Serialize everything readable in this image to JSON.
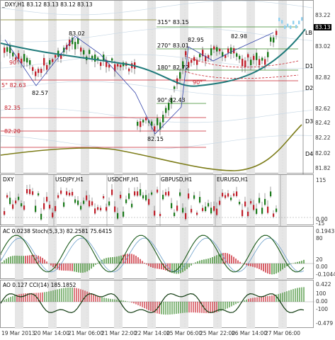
{
  "colors": {
    "grid": "#d8d8d8",
    "bull": "#1a7a1a",
    "bear": "#c0202b",
    "teal": "#1e7a7a",
    "olive": "#7d7d1a",
    "green": "#3a8a2a",
    "red": "#c8202b",
    "band": "#e6e6e6"
  },
  "main": {
    "title": "_DXY,H1  83.12 83.13 83.12 83.13",
    "price_axis": [
      "83.22",
      "83.02",
      "82.82",
      "82.62",
      "82.42",
      "82.22",
      "82.02",
      "81.82"
    ],
    "current_price": "83.13",
    "levels": [
      "315° 83.15",
      "270° 83.01",
      "180° 82.72",
      "90° 82.43",
      "90°",
      "5° 82.63",
      "82.35",
      "82.20",
      "90°"
    ],
    "peak_labels": [
      "83.02",
      "82.57",
      "82.95",
      "82.98",
      "82.15"
    ],
    "side_labels": [
      "LB",
      "D1",
      "D2",
      "D3",
      "D4"
    ]
  },
  "ratios": {
    "labels": [
      "DXY",
      "USDJPY,H1",
      "USDCHF,H1",
      "GBPUSD,H1",
      "EURUSD,H1"
    ],
    "axis": [
      "115",
      "0.00",
      "-15"
    ]
  },
  "ac": {
    "title": "AC 0.0238  Stoch(5,3,3) 82.2581 75.6415",
    "axis": [
      "0.1943",
      "80",
      "20",
      "0.00",
      "-0.1044"
    ]
  },
  "ao": {
    "title": "AO 0.127  CCI(14) 185.1852",
    "axis": [
      "0.422",
      "100",
      "0.00",
      "-100",
      "-0.479"
    ]
  },
  "time_axis": [
    "19 Mar 2013",
    "20 Mar 14:00",
    "21 Mar 06:00",
    "21 Mar 22:00",
    "22 Mar 14:00",
    "25 Mar 06:00",
    "25 Mar 22:00",
    "26 Mar 14:00",
    "27 Mar 06:00"
  ]
}
